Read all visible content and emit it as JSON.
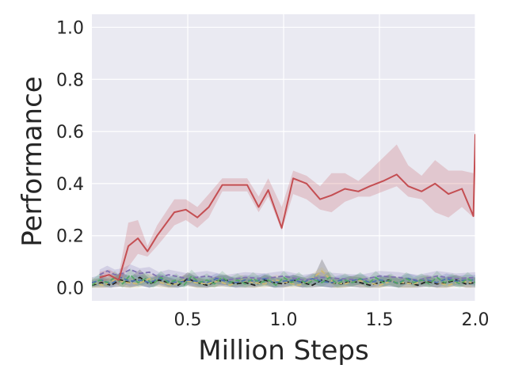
{
  "chart_data": {
    "type": "line",
    "title": "",
    "xlabel": "Million Steps",
    "ylabel": "Performance",
    "xlim": [
      0.0,
      2.0
    ],
    "ylim": [
      -0.05,
      1.05
    ],
    "xticks": [
      0.5,
      1.0,
      1.5,
      2.0
    ],
    "xtick_labels": [
      "0.5",
      "1.0",
      "1.5",
      "2.0"
    ],
    "yticks": [
      0.0,
      0.2,
      0.4,
      0.6,
      0.8,
      1.0
    ],
    "ytick_labels": [
      "0.0",
      "0.2",
      "0.4",
      "0.6",
      "0.8",
      "1.0"
    ],
    "grid": true,
    "background": "#eaeaf2",
    "series": [
      {
        "color": "#c44e52",
        "style": "solid",
        "x": [
          0.04,
          0.09,
          0.14,
          0.19,
          0.24,
          0.29,
          0.34,
          0.43,
          0.49,
          0.55,
          0.61,
          0.68,
          0.75,
          0.81,
          0.87,
          0.92,
          0.99,
          1.05,
          1.12,
          1.19,
          1.25,
          1.32,
          1.39,
          1.45,
          1.52,
          1.59,
          1.65,
          1.72,
          1.79,
          1.86,
          1.93,
          1.99,
          2.0
        ],
        "y": [
          0.04,
          0.05,
          0.03,
          0.16,
          0.19,
          0.14,
          0.2,
          0.29,
          0.3,
          0.27,
          0.31,
          0.395,
          0.395,
          0.395,
          0.31,
          0.375,
          0.23,
          0.42,
          0.4,
          0.34,
          0.355,
          0.38,
          0.37,
          0.39,
          0.41,
          0.435,
          0.39,
          0.37,
          0.4,
          0.36,
          0.38,
          0.275,
          0.59
        ],
        "band_upper": [
          0.06,
          0.07,
          0.05,
          0.25,
          0.26,
          0.16,
          0.24,
          0.34,
          0.34,
          0.31,
          0.36,
          0.42,
          0.42,
          0.42,
          0.35,
          0.42,
          0.31,
          0.45,
          0.43,
          0.39,
          0.44,
          0.44,
          0.41,
          0.45,
          0.5,
          0.55,
          0.47,
          0.43,
          0.49,
          0.45,
          0.45,
          0.44,
          0.6
        ],
        "band_lower": [
          0.02,
          0.03,
          0.01,
          0.08,
          0.13,
          0.12,
          0.16,
          0.24,
          0.26,
          0.23,
          0.27,
          0.37,
          0.37,
          0.37,
          0.29,
          0.35,
          0.22,
          0.36,
          0.34,
          0.3,
          0.29,
          0.33,
          0.35,
          0.35,
          0.37,
          0.39,
          0.35,
          0.34,
          0.29,
          0.27,
          0.31,
          0.27,
          0.58
        ]
      },
      {
        "color": "#8172b2",
        "style": "dashed",
        "x": [
          0.04,
          0.08,
          0.12,
          0.16,
          0.2,
          0.25,
          0.3,
          0.35,
          0.4,
          0.5,
          0.6,
          0.7,
          0.8,
          0.9,
          1.0,
          1.1,
          1.2,
          1.3,
          1.4,
          1.5,
          1.6,
          1.7,
          1.8,
          1.9,
          2.0
        ],
        "y": [
          0.05,
          0.065,
          0.05,
          0.055,
          0.07,
          0.055,
          0.06,
          0.04,
          0.05,
          0.035,
          0.045,
          0.03,
          0.04,
          0.035,
          0.045,
          0.03,
          0.04,
          0.035,
          0.03,
          0.045,
          0.04,
          0.03,
          0.045,
          0.035,
          0.04
        ],
        "band_upper": [
          0.07,
          0.085,
          0.07,
          0.075,
          0.09,
          0.075,
          0.08,
          0.06,
          0.07,
          0.055,
          0.065,
          0.05,
          0.06,
          0.055,
          0.065,
          0.05,
          0.06,
          0.055,
          0.05,
          0.065,
          0.06,
          0.05,
          0.065,
          0.055,
          0.06
        ],
        "band_lower": [
          0.03,
          0.045,
          0.03,
          0.035,
          0.05,
          0.035,
          0.04,
          0.02,
          0.03,
          0.015,
          0.025,
          0.01,
          0.02,
          0.015,
          0.025,
          0.01,
          0.02,
          0.015,
          0.01,
          0.025,
          0.02,
          0.01,
          0.025,
          0.015,
          0.02
        ]
      },
      {
        "color": "#222222",
        "style": "dashed",
        "x": [
          0.0,
          0.05,
          0.1,
          0.15,
          0.2,
          0.25,
          0.3,
          0.35,
          0.4,
          0.45,
          0.5,
          0.55,
          0.6,
          0.65,
          0.7,
          0.75,
          0.8,
          0.85,
          0.9,
          0.95,
          1.0,
          1.05,
          1.1,
          1.15,
          1.2,
          1.25,
          1.3,
          1.35,
          1.4,
          1.45,
          1.5,
          1.55,
          1.6,
          1.65,
          1.7,
          1.75,
          1.8,
          1.85,
          1.9,
          1.95,
          2.0
        ],
        "y": [
          0.01,
          0.02,
          0.01,
          0.03,
          0.02,
          0.04,
          0.015,
          0.03,
          0.02,
          0.01,
          0.035,
          0.02,
          0.01,
          0.025,
          0.03,
          0.015,
          0.02,
          0.01,
          0.03,
          0.02,
          0.015,
          0.03,
          0.02,
          0.01,
          0.03,
          0.02,
          0.015,
          0.025,
          0.02,
          0.01,
          0.02,
          0.03,
          0.015,
          0.02,
          0.01,
          0.025,
          0.015,
          0.02,
          0.03,
          0.015,
          0.02
        ],
        "band_upper": [
          0.03,
          0.04,
          0.03,
          0.06,
          0.04,
          0.07,
          0.035,
          0.05,
          0.04,
          0.03,
          0.06,
          0.04,
          0.03,
          0.045,
          0.05,
          0.035,
          0.04,
          0.03,
          0.05,
          0.04,
          0.035,
          0.05,
          0.04,
          0.03,
          0.11,
          0.04,
          0.035,
          0.045,
          0.04,
          0.03,
          0.04,
          0.05,
          0.035,
          0.04,
          0.03,
          0.045,
          0.035,
          0.04,
          0.05,
          0.035,
          0.04
        ],
        "band_lower": [
          0.0,
          0.0,
          0.0,
          0.005,
          0.0,
          0.01,
          0.0,
          0.01,
          0.0,
          0.0,
          0.01,
          0.0,
          0.0,
          0.005,
          0.01,
          0.0,
          0.0,
          0.0,
          0.01,
          0.0,
          0.0,
          0.01,
          0.0,
          0.0,
          0.005,
          0.0,
          0.0,
          0.005,
          0.0,
          0.0,
          0.0,
          0.01,
          0.0,
          0.0,
          0.0,
          0.005,
          0.0,
          0.0,
          0.01,
          0.0,
          0.0
        ]
      },
      {
        "color": "#ccb974",
        "style": "dashed",
        "x": [
          0.0,
          0.06,
          0.12,
          0.18,
          0.24,
          0.3,
          0.36,
          0.42,
          0.48,
          0.54,
          0.6,
          0.66,
          0.72,
          0.78,
          0.84,
          0.9,
          0.96,
          1.02,
          1.08,
          1.14,
          1.2,
          1.26,
          1.32,
          1.38,
          1.44,
          1.5,
          1.56,
          1.62,
          1.68,
          1.74,
          1.8,
          1.86,
          1.92,
          1.98
        ],
        "y": [
          0.02,
          0.01,
          0.03,
          0.02,
          0.015,
          0.035,
          0.02,
          0.01,
          0.03,
          0.02,
          0.015,
          0.025,
          0.01,
          0.03,
          0.02,
          0.015,
          0.03,
          0.02,
          0.01,
          0.03,
          0.065,
          0.02,
          0.015,
          0.03,
          0.02,
          0.01,
          0.025,
          0.02,
          0.015,
          0.03,
          0.02,
          0.01,
          0.025,
          0.02
        ],
        "band_upper": [
          0.04,
          0.03,
          0.05,
          0.04,
          0.035,
          0.055,
          0.04,
          0.03,
          0.05,
          0.04,
          0.035,
          0.045,
          0.03,
          0.05,
          0.04,
          0.035,
          0.05,
          0.04,
          0.03,
          0.05,
          0.08,
          0.04,
          0.035,
          0.05,
          0.04,
          0.03,
          0.045,
          0.04,
          0.035,
          0.05,
          0.04,
          0.03,
          0.045,
          0.04
        ],
        "band_lower": [
          0.0,
          0.0,
          0.01,
          0.0,
          0.0,
          0.015,
          0.0,
          0.0,
          0.01,
          0.0,
          0.0,
          0.005,
          0.0,
          0.01,
          0.0,
          0.0,
          0.01,
          0.0,
          0.0,
          0.01,
          0.05,
          0.0,
          0.0,
          0.01,
          0.0,
          0.0,
          0.005,
          0.0,
          0.0,
          0.01,
          0.0,
          0.0,
          0.005,
          0.0
        ]
      },
      {
        "color": "#4c72b0",
        "style": "dashed",
        "x": [
          0.0,
          0.05,
          0.1,
          0.15,
          0.2,
          0.25,
          0.3,
          0.35,
          0.4,
          0.45,
          0.5,
          0.55,
          0.6,
          0.65,
          0.7,
          0.75,
          0.8,
          0.85,
          0.9,
          0.95,
          1.0,
          1.05,
          1.1,
          1.15,
          1.2,
          1.25,
          1.3,
          1.35,
          1.4,
          1.45,
          1.5,
          1.55,
          1.6,
          1.65,
          1.7,
          1.75,
          1.8,
          1.85,
          1.9,
          1.95,
          2.0
        ],
        "y": [
          0.02,
          0.03,
          0.015,
          0.04,
          0.025,
          0.03,
          0.02,
          0.035,
          0.025,
          0.02,
          0.03,
          0.025,
          0.02,
          0.035,
          0.025,
          0.02,
          0.03,
          0.025,
          0.035,
          0.02,
          0.025,
          0.03,
          0.02,
          0.035,
          0.025,
          0.02,
          0.03,
          0.025,
          0.035,
          0.02,
          0.03,
          0.025,
          0.02,
          0.035,
          0.025,
          0.03,
          0.02,
          0.035,
          0.025,
          0.03,
          0.03
        ],
        "band_upper": [
          0.04,
          0.05,
          0.035,
          0.06,
          0.045,
          0.05,
          0.04,
          0.055,
          0.045,
          0.04,
          0.05,
          0.045,
          0.04,
          0.055,
          0.045,
          0.04,
          0.05,
          0.045,
          0.055,
          0.04,
          0.045,
          0.05,
          0.04,
          0.055,
          0.045,
          0.04,
          0.05,
          0.045,
          0.055,
          0.04,
          0.05,
          0.045,
          0.04,
          0.055,
          0.045,
          0.05,
          0.04,
          0.055,
          0.045,
          0.05,
          0.05
        ],
        "band_lower": [
          0.005,
          0.01,
          0.0,
          0.02,
          0.005,
          0.01,
          0.0,
          0.015,
          0.005,
          0.0,
          0.01,
          0.005,
          0.0,
          0.015,
          0.005,
          0.0,
          0.01,
          0.005,
          0.015,
          0.0,
          0.005,
          0.01,
          0.0,
          0.015,
          0.005,
          0.0,
          0.01,
          0.005,
          0.015,
          0.0,
          0.01,
          0.005,
          0.0,
          0.015,
          0.005,
          0.01,
          0.0,
          0.015,
          0.005,
          0.01,
          0.01
        ]
      },
      {
        "color": "#55a868",
        "style": "dashed",
        "x": [
          0.0,
          0.04,
          0.08,
          0.12,
          0.16,
          0.2,
          0.24,
          0.28,
          0.32,
          0.36,
          0.4,
          0.44,
          0.48,
          0.52,
          0.56,
          0.6,
          0.64,
          0.68,
          0.72,
          0.76,
          0.8,
          0.84,
          0.88,
          0.92,
          0.96,
          1.0,
          1.04,
          1.08,
          1.12,
          1.16,
          1.2,
          1.24,
          1.28,
          1.32,
          1.36,
          1.4,
          1.44,
          1.48,
          1.52,
          1.56,
          1.6,
          1.64,
          1.68,
          1.72,
          1.76,
          1.8,
          1.84,
          1.88,
          1.92,
          1.96,
          2.0
        ],
        "y": [
          0.01,
          0.03,
          0.02,
          0.04,
          0.015,
          0.05,
          0.02,
          0.035,
          0.015,
          0.04,
          0.02,
          0.03,
          0.01,
          0.045,
          0.02,
          0.03,
          0.015,
          0.04,
          0.02,
          0.03,
          0.015,
          0.035,
          0.02,
          0.03,
          0.01,
          0.04,
          0.02,
          0.035,
          0.015,
          0.03,
          0.02,
          0.04,
          0.015,
          0.03,
          0.02,
          0.035,
          0.015,
          0.04,
          0.02,
          0.03,
          0.015,
          0.035,
          0.02,
          0.03,
          0.015,
          0.04,
          0.02,
          0.03,
          0.015,
          0.035,
          0.02
        ],
        "band_upper": [
          0.03,
          0.055,
          0.04,
          0.065,
          0.035,
          0.075,
          0.04,
          0.06,
          0.035,
          0.065,
          0.04,
          0.055,
          0.03,
          0.07,
          0.04,
          0.055,
          0.035,
          0.065,
          0.04,
          0.055,
          0.035,
          0.06,
          0.04,
          0.055,
          0.03,
          0.065,
          0.04,
          0.06,
          0.035,
          0.055,
          0.04,
          0.065,
          0.035,
          0.055,
          0.04,
          0.06,
          0.035,
          0.065,
          0.04,
          0.055,
          0.035,
          0.06,
          0.04,
          0.055,
          0.035,
          0.065,
          0.04,
          0.055,
          0.035,
          0.06,
          0.04
        ],
        "band_lower": [
          0.0,
          0.01,
          0.005,
          0.02,
          0.0,
          0.025,
          0.005,
          0.015,
          0.0,
          0.02,
          0.005,
          0.01,
          0.0,
          0.02,
          0.005,
          0.01,
          0.0,
          0.02,
          0.005,
          0.01,
          0.0,
          0.015,
          0.005,
          0.01,
          0.0,
          0.02,
          0.005,
          0.015,
          0.0,
          0.01,
          0.005,
          0.02,
          0.0,
          0.01,
          0.005,
          0.015,
          0.0,
          0.02,
          0.005,
          0.01,
          0.0,
          0.015,
          0.005,
          0.01,
          0.0,
          0.02,
          0.005,
          0.01,
          0.0,
          0.015,
          0.005
        ]
      }
    ]
  }
}
